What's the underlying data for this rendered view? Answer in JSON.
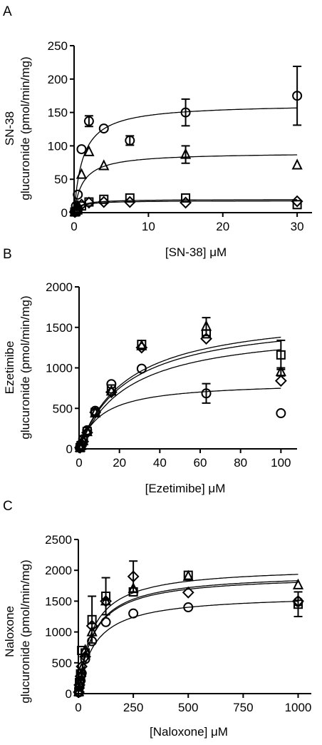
{
  "chart_data": [
    {
      "type": "scatter",
      "panel_letter": "A",
      "xlabel": "[SN-38] μM",
      "ylabel_line1": "SN-38",
      "ylabel_line2": "glucuronide (pmol/min/mg)",
      "xlim": [
        0,
        32
      ],
      "ylim": [
        0,
        250
      ],
      "xticks": [
        0,
        10,
        20,
        30
      ],
      "yticks": [
        0,
        50,
        100,
        150,
        200,
        250
      ],
      "series": [
        {
          "marker": "circle",
          "x": [
            0.1,
            0.25,
            0.5,
            1,
            2,
            4,
            7.5,
            15,
            30
          ],
          "y": [
            2,
            10,
            27,
            95,
            137,
            126,
            108,
            150,
            175
          ],
          "err": [
            0,
            0,
            0,
            0,
            8,
            0,
            7,
            20,
            44
          ],
          "fit": {
            "vmax": 163,
            "km": 1.2
          }
        },
        {
          "marker": "triangle",
          "x": [
            0.1,
            0.25,
            0.5,
            1,
            2,
            4,
            15,
            30
          ],
          "y": [
            1,
            4,
            10,
            57,
            91,
            70,
            87,
            71
          ],
          "err": [
            0,
            0,
            0,
            0,
            0,
            0,
            13,
            0
          ],
          "fit": {
            "vmax": 90,
            "km": 1.2
          }
        },
        {
          "marker": "square",
          "x": [
            0.1,
            0.25,
            0.5,
            1,
            2,
            4,
            7.5,
            15,
            30
          ],
          "y": [
            1,
            2,
            4,
            10,
            16,
            20,
            22,
            22,
            12
          ],
          "err": [
            0,
            0,
            0,
            0,
            0,
            0,
            0,
            0,
            0
          ],
          "fit": {
            "vmax": 20,
            "km": 0.8
          }
        },
        {
          "marker": "diamond",
          "x": [
            0.1,
            0.25,
            0.5,
            1,
            2,
            4,
            7.5,
            15,
            30
          ],
          "y": [
            1,
            2,
            5,
            12,
            15,
            16,
            16,
            15,
            17
          ],
          "err": [
            0,
            0,
            0,
            0,
            0,
            0,
            0,
            0,
            0
          ],
          "fit": {
            "vmax": 18,
            "km": 0.8
          }
        }
      ]
    },
    {
      "type": "scatter",
      "panel_letter": "B",
      "xlabel": "[Ezetimibe] μM",
      "ylabel_line1": "Ezetimibe",
      "ylabel_line2": "glucuronide (pmol/min/mg)",
      "xlim": [
        0,
        108
      ],
      "ylim": [
        0,
        2000
      ],
      "xticks": [
        0,
        20,
        40,
        60,
        80,
        100
      ],
      "yticks": [
        0,
        500,
        1000,
        1500,
        2000
      ],
      "series": [
        {
          "marker": "circle",
          "x": [
            0.5,
            1,
            2,
            4,
            8,
            16,
            31,
            63,
            100
          ],
          "y": [
            20,
            55,
            120,
            230,
            470,
            800,
            990,
            685,
            440
          ],
          "err": [
            0,
            0,
            0,
            0,
            0,
            0,
            0,
            120,
            0
          ],
          "fit": {
            "vmax": 830,
            "km": 11
          }
        },
        {
          "marker": "triangle",
          "x": [
            0.5,
            1,
            2,
            4,
            8,
            16,
            31,
            63,
            100
          ],
          "y": [
            15,
            40,
            100,
            210,
            440,
            710,
            1270,
            1510,
            950
          ],
          "err": [
            0,
            0,
            0,
            0,
            0,
            0,
            0,
            110,
            50
          ],
          "fit": {
            "vmax": 1710,
            "km": 24
          }
        },
        {
          "marker": "square",
          "x": [
            0.5,
            1,
            2,
            4,
            8,
            16,
            31,
            63,
            100
          ],
          "y": [
            15,
            40,
            100,
            215,
            450,
            740,
            1290,
            1420,
            1160
          ],
          "err": [
            0,
            0,
            0,
            0,
            0,
            0,
            0,
            0,
            180
          ],
          "fit": {
            "vmax": 1520,
            "km": 24
          }
        },
        {
          "marker": "diamond",
          "x": [
            0.5,
            1,
            2,
            4,
            8,
            16,
            31,
            63,
            100
          ],
          "y": [
            15,
            35,
            90,
            200,
            450,
            700,
            1250,
            1360,
            840
          ],
          "err": [
            0,
            0,
            0,
            0,
            0,
            0,
            0,
            0,
            0
          ],
          "fit": {
            "vmax": 1650,
            "km": 24
          }
        }
      ]
    },
    {
      "type": "scatter",
      "panel_letter": "C",
      "xlabel": "[Naloxone] μM",
      "ylabel_line1": "Naloxone",
      "ylabel_line2": "glucuronide (pmol/min/mg)",
      "xlim": [
        0,
        1060
      ],
      "ylim": [
        0,
        2500
      ],
      "xticks": [
        0,
        250,
        500,
        750,
        1000
      ],
      "yticks": [
        0,
        500,
        1000,
        1500,
        2000,
        2500
      ],
      "series": [
        {
          "marker": "circle",
          "x": [
            2,
            5,
            10,
            15,
            31,
            62,
            125,
            250,
            500,
            1000
          ],
          "y": [
            20,
            110,
            210,
            330,
            560,
            850,
            1160,
            1300,
            1400,
            1490
          ],
          "err": [
            0,
            0,
            0,
            0,
            0,
            0,
            0,
            0,
            0,
            0
          ],
          "fit": {
            "vmax": 1610,
            "km": 75
          }
        },
        {
          "marker": "triangle",
          "x": [
            2,
            5,
            10,
            15,
            31,
            62,
            125,
            250,
            500,
            1000
          ],
          "y": [
            30,
            150,
            270,
            400,
            700,
            1000,
            1500,
            1700,
            1900,
            1760
          ],
          "err": [
            0,
            0,
            0,
            0,
            0,
            0,
            0,
            0,
            0,
            0
          ],
          "fit": {
            "vmax": 1960,
            "km": 70
          }
        },
        {
          "marker": "square",
          "x": [
            2,
            5,
            10,
            15,
            31,
            62,
            125,
            250,
            500,
            1000
          ],
          "y": [
            30,
            180,
            320,
            700,
            660,
            1200,
            1580,
            1650,
            1920,
            1450
          ],
          "err": [
            0,
            0,
            0,
            0,
            0,
            380,
            300,
            0,
            0,
            200
          ],
          "fit": {
            "vmax": 2060,
            "km": 65
          }
        },
        {
          "marker": "diamond",
          "x": [
            2,
            5,
            10,
            15,
            31,
            62,
            125,
            250,
            500,
            1000
          ],
          "y": [
            25,
            140,
            280,
            440,
            600,
            1100,
            1500,
            1900,
            1640,
            1500
          ],
          "err": [
            0,
            0,
            0,
            0,
            0,
            0,
            0,
            250,
            0,
            0
          ],
          "fit": {
            "vmax": 1930,
            "km": 70
          }
        }
      ]
    }
  ]
}
